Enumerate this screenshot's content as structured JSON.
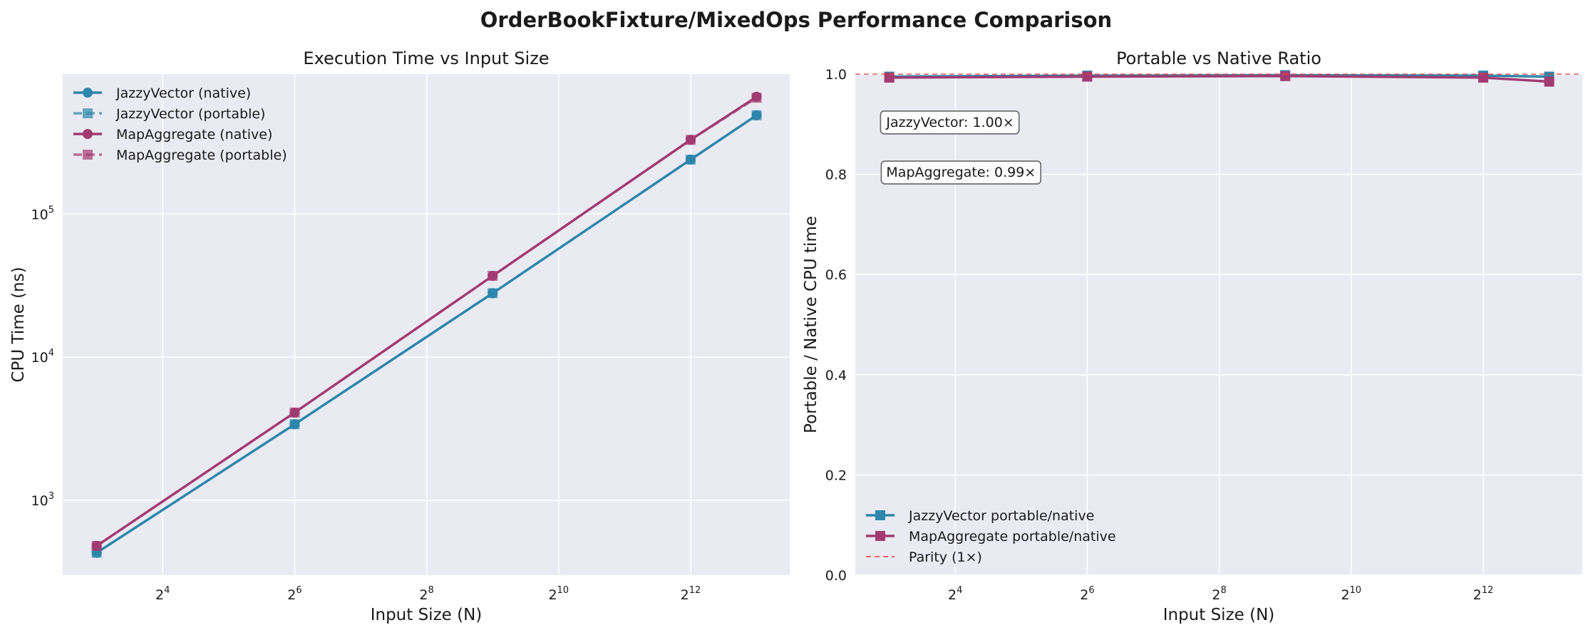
{
  "suptitle": "OrderBookFixture/MixedOps Performance Comparison",
  "colors": {
    "jazzy": "#2e86ab",
    "map": "#a23b72",
    "parity": "#e8413e",
    "panel_bg": "#eaeaf2",
    "grid": "#ffffff"
  },
  "chart_data": [
    {
      "type": "line",
      "title": "Execution Time vs Input Size",
      "xlabel": "Input Size (N)",
      "ylabel": "CPU Time (ns)",
      "xscale": "log2",
      "yscale": "log10",
      "x": [
        8,
        64,
        512,
        4096,
        8192
      ],
      "xlim": [
        5.6,
        11600
      ],
      "ylim": [
        300,
        950000
      ],
      "xticks": [
        {
          "value": 16,
          "base": "2",
          "exp": "4"
        },
        {
          "value": 64,
          "base": "2",
          "exp": "6"
        },
        {
          "value": 256,
          "base": "2",
          "exp": "8"
        },
        {
          "value": 1024,
          "base": "2",
          "exp": "10"
        },
        {
          "value": 4096,
          "base": "2",
          "exp": "12"
        }
      ],
      "yticks": [
        {
          "value": 1000,
          "base": "10",
          "exp": "3"
        },
        {
          "value": 10000,
          "base": "10",
          "exp": "4"
        },
        {
          "value": 100000,
          "base": "10",
          "exp": "5"
        }
      ],
      "grid": true,
      "legend": "upper left",
      "series": [
        {
          "name": "JazzyVector (native)",
          "color_key": "jazzy",
          "marker": "circle",
          "style": "solid",
          "values": [
            430,
            3400,
            28000,
            240000,
            490000
          ]
        },
        {
          "name": "JazzyVector (portable)",
          "color_key": "jazzy",
          "marker": "square",
          "style": "dashed",
          "values": [
            430,
            3400,
            28000,
            240000,
            490000
          ]
        },
        {
          "name": "MapAggregate (native)",
          "color_key": "map",
          "marker": "circle",
          "style": "solid",
          "values": [
            480,
            4100,
            37000,
            330000,
            660000
          ]
        },
        {
          "name": "MapAggregate (portable)",
          "color_key": "map",
          "marker": "square",
          "style": "dashed",
          "values": [
            480,
            4100,
            37000,
            330000,
            650000
          ]
        }
      ]
    },
    {
      "type": "line",
      "title": "Portable vs Native Ratio",
      "xlabel": "Input Size (N)",
      "ylabel": "Portable / Native CPU time",
      "xscale": "log2",
      "yscale": "linear",
      "x": [
        8,
        64,
        512,
        4096,
        8192
      ],
      "xlim": [
        5.6,
        11600
      ],
      "ylim": [
        0.0,
        1.0
      ],
      "xticks": [
        {
          "value": 16,
          "base": "2",
          "exp": "4"
        },
        {
          "value": 64,
          "base": "2",
          "exp": "6"
        },
        {
          "value": 256,
          "base": "2",
          "exp": "8"
        },
        {
          "value": 1024,
          "base": "2",
          "exp": "10"
        },
        {
          "value": 4096,
          "base": "2",
          "exp": "12"
        }
      ],
      "yticks": [
        {
          "value": 0.0,
          "label": "0.0"
        },
        {
          "value": 0.2,
          "label": "0.2"
        },
        {
          "value": 0.4,
          "label": "0.4"
        },
        {
          "value": 0.6,
          "label": "0.6"
        },
        {
          "value": 0.8,
          "label": "0.8"
        },
        {
          "value": 1.0,
          "label": "1.0"
        }
      ],
      "grid": true,
      "legend": "lower left",
      "series": [
        {
          "name": "JazzyVector portable/native",
          "color_key": "jazzy",
          "marker": "square",
          "style": "solid",
          "values": [
            0.995,
            0.997,
            0.998,
            0.997,
            0.995
          ]
        },
        {
          "name": "MapAggregate portable/native",
          "color_key": "map",
          "marker": "square",
          "style": "solid",
          "values": [
            0.993,
            0.995,
            0.996,
            0.993,
            0.985
          ]
        },
        {
          "name": "Parity (1×)",
          "color_key": "parity",
          "marker": "none",
          "style": "dashed",
          "hline": 1.0
        }
      ],
      "annotations": [
        {
          "text": "JazzyVector: 1.00×",
          "x": 7.3,
          "y": 0.905
        },
        {
          "text": "MapAggregate: 0.99×",
          "x": 7.3,
          "y": 0.805
        }
      ]
    }
  ]
}
